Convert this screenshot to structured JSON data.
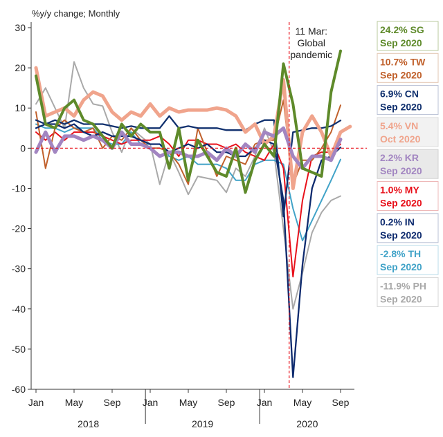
{
  "chart_data": {
    "type": "line",
    "title": "",
    "ylabel": "%y/y change; Monthly",
    "xlabel": "",
    "ylim": [
      -60,
      30
    ],
    "yticks": [
      30,
      20,
      10,
      0,
      -10,
      -20,
      -30,
      -40,
      -50,
      -60
    ],
    "x_months": [
      "Jan 2018",
      "Feb 2018",
      "Mar 2018",
      "Apr 2018",
      "May 2018",
      "Jun 2018",
      "Jul 2018",
      "Aug 2018",
      "Sep 2018",
      "Oct 2018",
      "Nov 2018",
      "Dec 2018",
      "Jan 2019",
      "Feb 2019",
      "Mar 2019",
      "Apr 2019",
      "May 2019",
      "Jun 2019",
      "Jul 2019",
      "Aug 2019",
      "Sep 2019",
      "Oct 2019",
      "Nov 2019",
      "Dec 2019",
      "Jan 2020",
      "Feb 2020",
      "Mar 2020",
      "Apr 2020",
      "May 2020",
      "Jun 2020",
      "Jul 2020",
      "Aug 2020",
      "Sep 2020",
      "Oct 2020"
    ],
    "x_tick_labels": [
      "Jan",
      "May",
      "Sep",
      "Jan",
      "May",
      "Sep",
      "Jan",
      "May",
      "Sep"
    ],
    "x_tick_index": [
      0,
      4,
      8,
      12,
      16,
      20,
      24,
      28,
      32
    ],
    "year_labels": [
      {
        "text": "2018",
        "center_index": 5.5
      },
      {
        "text": "2019",
        "center_index": 17.5
      },
      {
        "text": "2020",
        "center_index": 28.5
      }
    ],
    "zero_line": {
      "value": 0,
      "color": "#e8101a"
    },
    "event_line": {
      "index": 26.6,
      "color": "#e8101a",
      "label_lines": [
        "11 Mar:",
        "Global",
        "pandemic"
      ]
    },
    "series": [
      {
        "name": "SG",
        "color": "#98a2a3",
        "width": 2,
        "values": [
          10,
          15,
          9,
          11,
          21,
          15,
          11,
          11,
          5,
          1,
          7,
          5,
          1,
          -9,
          -3,
          -6,
          -12,
          -7,
          -7,
          -10,
          -8,
          -3,
          -5,
          0,
          null,
          null,
          null,
          null,
          null,
          null,
          null,
          null,
          null,
          null
        ],
        "hide": true
      },
      {
        "name": "PH",
        "color": "#a9a9a9",
        "width": 2,
        "values": [
          11,
          15,
          10,
          5,
          21.5,
          15,
          11,
          10.5,
          4,
          -1,
          5,
          3,
          1,
          -9,
          -1,
          -6,
          -11.5,
          -7,
          -7.5,
          -8,
          -11,
          -5,
          -7,
          -2,
          5,
          -1,
          -20,
          -40,
          -31,
          -21,
          -16,
          -13,
          -11.9,
          null
        ]
      },
      {
        "name": "TH",
        "color": "#41a3c8",
        "width": 2,
        "values": [
          6,
          5,
          5,
          4,
          5,
          5,
          5,
          2,
          1,
          1,
          4,
          1,
          1,
          1,
          -2,
          -3,
          -2,
          -4,
          -4,
          -4,
          -5,
          -8,
          -8,
          -4,
          -3,
          -3,
          -4,
          -15,
          -23,
          -18,
          -13,
          -8,
          -2.8,
          null
        ]
      },
      {
        "name": "MY",
        "color": "#e8101a",
        "width": 2,
        "values": [
          4,
          2,
          4,
          2,
          4,
          4,
          4,
          3,
          2,
          1,
          2,
          2,
          2,
          3,
          1,
          -2,
          2,
          2,
          1,
          1,
          0,
          1,
          -1,
          -2,
          -3,
          1,
          -5,
          -32,
          -13,
          -2,
          -1,
          -1,
          1.0,
          null
        ]
      },
      {
        "name": "TW",
        "color": "#c0602b",
        "width": 2,
        "values": [
          9,
          -5,
          5,
          7,
          5,
          4,
          5,
          0,
          3,
          2,
          5,
          2,
          0,
          0,
          -1,
          -4,
          -9,
          5,
          -1,
          -7,
          -2,
          -3,
          -4,
          1,
          2,
          2,
          12,
          -9,
          -3,
          -3,
          0,
          4,
          10.7,
          null
        ]
      },
      {
        "name": "IN",
        "color": "#0d2a6e",
        "width": 2.3,
        "values": [
          5,
          6,
          6,
          5,
          6,
          4,
          3,
          4,
          3,
          3,
          3,
          2,
          1,
          1,
          -1,
          0,
          1,
          0,
          1,
          -1,
          -1,
          -2,
          -2,
          0,
          2,
          1,
          -13,
          -57,
          -29,
          -10,
          -3,
          -2,
          0.2,
          null
        ]
      },
      {
        "name": "CN",
        "color": "#10306e",
        "width": 2.3,
        "values": [
          7,
          6,
          7,
          6,
          7,
          6,
          6,
          6,
          5.5,
          5,
          5.5,
          5,
          5,
          5,
          8,
          5,
          5.5,
          5,
          5,
          5,
          4.5,
          4.5,
          4.5,
          6,
          7,
          7,
          -17,
          4,
          4.5,
          5,
          5,
          5.5,
          6.9,
          null
        ]
      },
      {
        "name": "VN",
        "color": "#f0a48c",
        "width": 5,
        "values": [
          20,
          8,
          9,
          10,
          8,
          12,
          14,
          13,
          9,
          7,
          9,
          8,
          11,
          8,
          10,
          9,
          9.5,
          9.5,
          9.5,
          10,
          9.5,
          8,
          4,
          6,
          1,
          3,
          17,
          -10,
          4,
          8,
          4,
          -2,
          4,
          5.4
        ]
      },
      {
        "name": "KR",
        "color": "#a285c1",
        "width": 5,
        "values": [
          -1,
          4,
          -1,
          3,
          3,
          2,
          3,
          2,
          0,
          4,
          1,
          1,
          0,
          -2,
          -1,
          -1,
          -2,
          -2,
          -1,
          -3,
          0,
          -2,
          1,
          -1,
          4,
          3,
          5,
          -2,
          -5,
          -2,
          -2,
          -3,
          2.2,
          null
        ]
      },
      {
        "name": "SG",
        "color": "#5e8a2a",
        "width": 4,
        "values": [
          18,
          6,
          5,
          10,
          12,
          7,
          6,
          3,
          0,
          6,
          3,
          6,
          4,
          4,
          -5,
          5,
          -8,
          2,
          -2,
          -6,
          -7,
          0,
          -11,
          -3,
          1,
          -2,
          21,
          11,
          -5,
          -6,
          -7,
          14,
          24.2,
          null
        ]
      }
    ],
    "callouts": [
      {
        "line1": "24.2% SG",
        "line2": "Sep 2020",
        "color": "#5e8a2a",
        "bg": "#ffffff",
        "border": "#b9c89e"
      },
      {
        "line1": "10.7% TW",
        "line2": "Sep 2020",
        "color": "#c0602b",
        "bg": "#ffffff",
        "border": "#e2c4b0"
      },
      {
        "line1": "6.9% CN",
        "line2": "Sep 2020",
        "color": "#10306e",
        "bg": "#ffffff",
        "border": "#b8c0d4"
      },
      {
        "line1": "5.4% VN",
        "line2": "Oct 2020",
        "color": "#f0a48c",
        "bg": "#f2f2f2",
        "border": "#dddddd"
      },
      {
        "line1": "2.2% KR",
        "line2": "Sep 2020",
        "color": "#a285c1",
        "bg": "#e9e9e9",
        "border": "#d0d0d0"
      },
      {
        "line1": "1.0% MY",
        "line2": "Sep 2020",
        "color": "#e8101a",
        "bg": "#ffffff",
        "border": "#eeb8b8"
      },
      {
        "line1": "0.2% IN",
        "line2": "Sep 2020",
        "color": "#0d2a6e",
        "bg": "#ffffff",
        "border": "#b8c0d4"
      },
      {
        "line1": "-2.8% TH",
        "line2": "Sep 2020",
        "color": "#41a3c8",
        "bg": "#ffffff",
        "border": "#b8dbe8"
      },
      {
        "line1": "-11.9% PH",
        "line2": "Sep 2020",
        "color": "#a9a9a9",
        "bg": "#ffffff",
        "border": "#d6d6d6"
      }
    ]
  }
}
